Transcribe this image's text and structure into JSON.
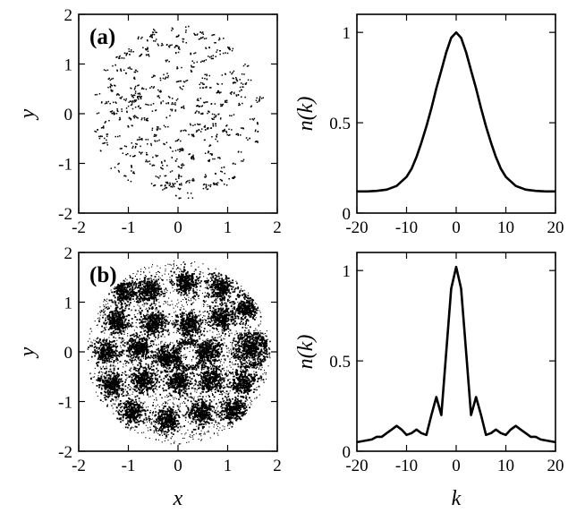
{
  "chart_data": [
    {
      "type": "scatter",
      "panel_label": "(a)",
      "xlabel": "",
      "ylabel": "y",
      "xlim": [
        -2,
        2
      ],
      "ylim": [
        -2,
        2
      ],
      "xticks": [
        "-2",
        "-1",
        "0",
        "1",
        "2"
      ],
      "yticks": [
        "-2",
        "-1",
        "0",
        "1",
        "2"
      ],
      "point_color": "#000000",
      "distribution": "sparse random points in a disc of radius about 1.8 centered at origin",
      "grid": false
    },
    {
      "type": "line",
      "xlabel": "",
      "ylabel": "n(k)",
      "xlim": [
        -20,
        20
      ],
      "ylim": [
        0,
        1.1
      ],
      "xticks": [
        "-20",
        "-10",
        "0",
        "10",
        "20"
      ],
      "yticks": [
        "0",
        "0.5",
        "1"
      ],
      "line_color": "#000000",
      "grid": false,
      "series": [
        {
          "x": [
            -20,
            -18,
            -16,
            -14,
            -12,
            -10,
            -9,
            -8,
            -7,
            -6,
            -5,
            -4,
            -3,
            -2,
            -1,
            0,
            1,
            2,
            3,
            4,
            5,
            6,
            7,
            8,
            9,
            10,
            12,
            14,
            16,
            18,
            20
          ],
          "values": [
            0.12,
            0.12,
            0.123,
            0.13,
            0.15,
            0.2,
            0.245,
            0.31,
            0.39,
            0.48,
            0.58,
            0.69,
            0.79,
            0.89,
            0.97,
            1.0,
            0.97,
            0.89,
            0.79,
            0.69,
            0.58,
            0.48,
            0.39,
            0.31,
            0.245,
            0.2,
            0.15,
            0.13,
            0.123,
            0.12,
            0.12
          ]
        }
      ]
    },
    {
      "type": "scatter",
      "panel_label": "(b)",
      "xlabel": "x",
      "ylabel": "y",
      "xlim": [
        -2,
        2
      ],
      "ylim": [
        -2,
        2
      ],
      "xticks": [
        "-2",
        "-1",
        "0",
        "1",
        "2"
      ],
      "yticks": [
        "-2",
        "-1",
        "0",
        "1",
        "2"
      ],
      "point_color": "#000000",
      "distribution": "dense points in a disc of radius about 1.8 forming dark blob clusters and rings",
      "grid": false
    },
    {
      "type": "line",
      "xlabel": "k",
      "ylabel": "n(k)",
      "xlim": [
        -20,
        20
      ],
      "ylim": [
        0,
        1.1
      ],
      "xticks": [
        "-20",
        "-10",
        "0",
        "10",
        "20"
      ],
      "yticks": [
        "0",
        "0.5",
        "1"
      ],
      "line_color": "#000000",
      "grid": false,
      "series": [
        {
          "x": [
            -20,
            -18,
            -17,
            -16,
            -15,
            -14,
            -13,
            -12,
            -11,
            -10,
            -9,
            -8,
            -7,
            -6,
            -5,
            -4,
            -3,
            -2,
            -1,
            0,
            1,
            2,
            3,
            4,
            5,
            6,
            7,
            8,
            9,
            10,
            11,
            12,
            13,
            14,
            15,
            16,
            17,
            18,
            20
          ],
          "values": [
            0.05,
            0.06,
            0.065,
            0.08,
            0.08,
            0.1,
            0.12,
            0.14,
            0.12,
            0.09,
            0.1,
            0.12,
            0.1,
            0.09,
            0.2,
            0.3,
            0.2,
            0.55,
            0.9,
            1.02,
            0.9,
            0.55,
            0.2,
            0.3,
            0.2,
            0.09,
            0.1,
            0.12,
            0.1,
            0.09,
            0.12,
            0.14,
            0.12,
            0.1,
            0.08,
            0.08,
            0.065,
            0.06,
            0.05
          ]
        }
      ]
    }
  ]
}
